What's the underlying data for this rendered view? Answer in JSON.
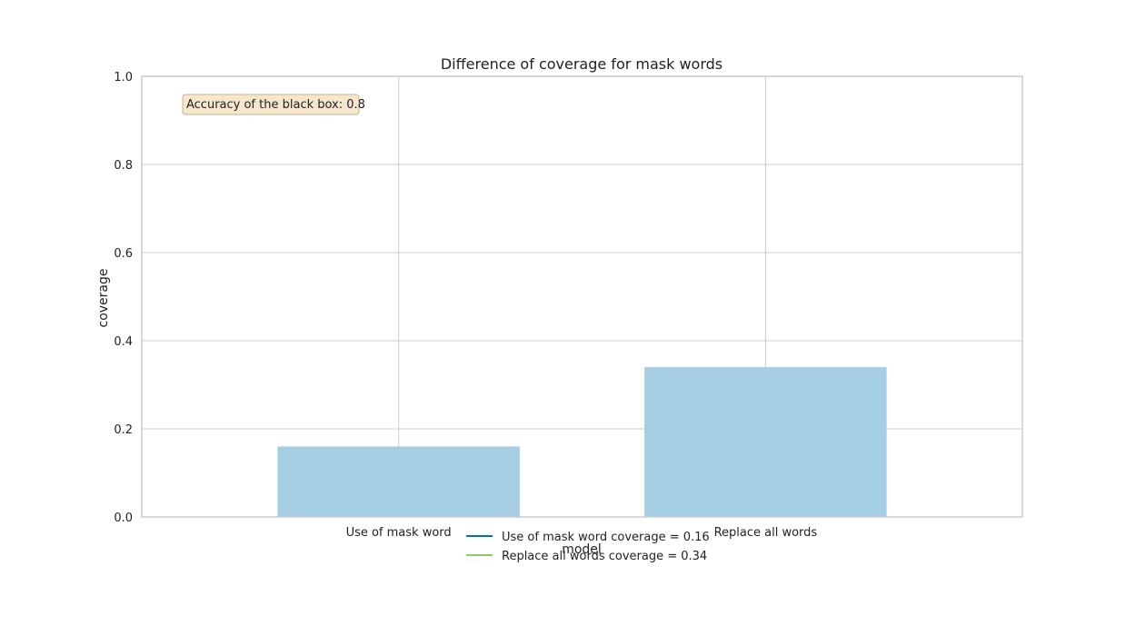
{
  "chart_data": {
    "type": "bar",
    "title": "Difference of coverage for mask words",
    "xlabel": "model",
    "ylabel": "coverage",
    "categories": [
      "Use of mask word",
      "Replace all words"
    ],
    "values": [
      0.16,
      0.34
    ],
    "ylim": [
      0,
      1.0
    ],
    "yticks": [
      "0.0",
      "0.2",
      "0.4",
      "0.6",
      "0.8",
      "1.0"
    ],
    "grid": true,
    "bar_color": "#a6cee3",
    "annotation": "Accuracy of the black box: 0.8",
    "legend": {
      "placement": "bottom-center",
      "entries": [
        {
          "label": "Use of mask word coverage = 0.16",
          "color": "#0072b2"
        },
        {
          "label": "Replace all words coverage = 0.34",
          "color": "#8dc965"
        }
      ]
    }
  }
}
